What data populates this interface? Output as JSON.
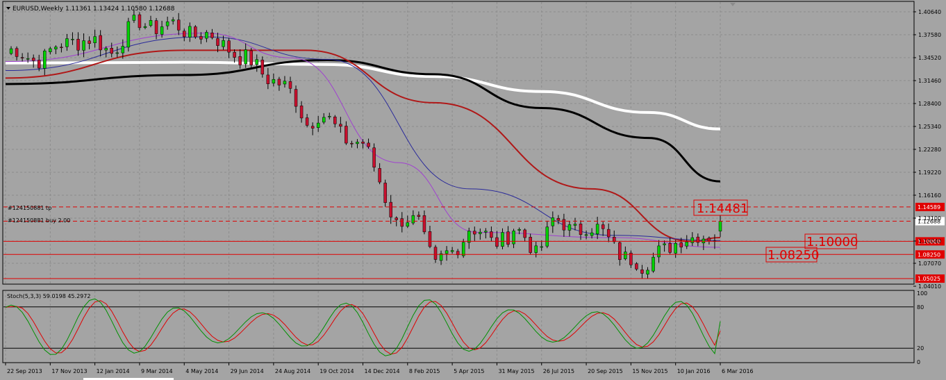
{
  "window": {
    "symbol_line": "EURUSD,Weekly  1.11361 1.13424 1.10580 1.12688"
  },
  "colors": {
    "background": "#a4a4a4",
    "grid": "#8c8c8c",
    "bull": "#00d000",
    "bear": "#c8102e",
    "hline": "#e00000",
    "ma_white": "#ffffff",
    "ma_black": "#000000",
    "ma_red": "#b01818",
    "ma_blue": "#2a2a9a",
    "ma_purple": "#a040d0",
    "stoch_main": "#009000",
    "stoch_signal": "#e00000"
  },
  "price_axis": {
    "ticks": [
      "1.40640",
      "1.37580",
      "1.34520",
      "1.31460",
      "1.28400",
      "1.25340",
      "1.22280",
      "1.19220",
      "1.16160",
      "1.13100",
      "1.10040",
      "1.07070",
      "1.04010"
    ],
    "range": [
      1.0401,
      1.4064
    ],
    "current": "1.12688"
  },
  "date_axis": {
    "labels": [
      "22 Sep 2013",
      "17 Nov 2013",
      "12 Jan 2014",
      "9 Mar 2014",
      "4 May 2014",
      "29 Jun 2014",
      "24 Aug 2014",
      "19 Oct 2014",
      "14 Dec 2014",
      "8 Feb 2015",
      "5 Apr 2015",
      "31 May 2015",
      "26 Jul 2015",
      "20 Sep 2015",
      "15 Nov 2015",
      "10 Jan 2016",
      "6 Mar 2016"
    ]
  },
  "levels": [
    {
      "price": 1.14589,
      "label": "1.14589",
      "style": "dashed"
    },
    {
      "price": 1.12688,
      "label": "1.12688",
      "style": "dashed"
    },
    {
      "price": 1.1,
      "label": "1.10000",
      "style": "solid"
    },
    {
      "price": 1.0825,
      "label": "1.08250",
      "style": "solid"
    },
    {
      "price": 1.05025,
      "label": "1.05025",
      "style": "solid"
    }
  ],
  "order_labels": [
    {
      "text": "#124150881 tp"
    },
    {
      "text": "#124150881 buy 2.00"
    }
  ],
  "callouts": [
    "1.14481",
    "1.10000",
    "1.08250"
  ],
  "stoch": {
    "title": "Stoch(5,3,3) 59.0198 45.2972",
    "ticks": [
      "100",
      "80",
      "20",
      "0"
    ],
    "levels": [
      80,
      20
    ]
  },
  "chart_data": {
    "type": "candlestick",
    "title": "EURUSD,Weekly",
    "ohlc_current": {
      "open": 1.11361,
      "high": 1.13424,
      "low": 1.1058,
      "close": 1.12688
    },
    "anchors": [
      {
        "date": "22 Sep 2013",
        "price": 1.352
      },
      {
        "date": "10 Nov 2013",
        "price": 1.345
      },
      {
        "date": "15 Dec 2013",
        "price": 1.372
      },
      {
        "date": "2 Feb 2014",
        "price": 1.357
      },
      {
        "date": "9 Mar 2014",
        "price": 1.392
      },
      {
        "date": "4 May 2014",
        "price": 1.384
      },
      {
        "date": "29 Jun 2014",
        "price": 1.362
      },
      {
        "date": "13 Jul 2014",
        "price": 1.345
      },
      {
        "date": "24 Aug 2014",
        "price": 1.318
      },
      {
        "date": "21 Sep 2014",
        "price": 1.287
      },
      {
        "date": "5 Oct 2014",
        "price": 1.262
      },
      {
        "date": "19 Oct 2014",
        "price": 1.268
      },
      {
        "date": "16 Nov 2014",
        "price": 1.246
      },
      {
        "date": "14 Dec 2014",
        "price": 1.227
      },
      {
        "date": "4 Jan 2015",
        "price": 1.184
      },
      {
        "date": "25 Jan 2015",
        "price": 1.122
      },
      {
        "date": "22 Feb 2015",
        "price": 1.128
      },
      {
        "date": "15 Mar 2015",
        "price": 1.066
      },
      {
        "date": "5 Apr 2015",
        "price": 1.085
      },
      {
        "date": "26 Apr 2015",
        "price": 1.121
      },
      {
        "date": "24 May 2015",
        "price": 1.098
      },
      {
        "date": "21 Jun 2015",
        "price": 1.116
      },
      {
        "date": "19 Jul 2015",
        "price": 1.086
      },
      {
        "date": "9 Aug 2015",
        "price": 1.128
      },
      {
        "date": "30 Aug 2015",
        "price": 1.114
      },
      {
        "date": "20 Sep 2015",
        "price": 1.124
      },
      {
        "date": "18 Oct 2015",
        "price": 1.101
      },
      {
        "date": "29 Nov 2015",
        "price": 1.062
      },
      {
        "date": "20 Dec 2015",
        "price": 1.092
      },
      {
        "date": "10 Jan 2016",
        "price": 1.092
      },
      {
        "date": "7 Feb 2016",
        "price": 1.115
      },
      {
        "date": "28 Feb 2016",
        "price": 1.1
      },
      {
        "date": "6 Mar 2016",
        "price": 1.12688
      }
    ],
    "moving_averages": [
      {
        "color": "#ffffff",
        "points": [
          [
            1.338,
            0
          ],
          [
            1.339,
            0.25
          ],
          [
            1.336,
            0.45
          ],
          [
            1.32,
            0.6
          ],
          [
            1.3,
            0.75
          ],
          [
            1.272,
            0.9
          ],
          [
            1.25,
            1.0
          ]
        ]
      },
      {
        "color": "#000000",
        "points": [
          [
            1.31,
            0
          ],
          [
            1.322,
            0.25
          ],
          [
            1.342,
            0.45
          ],
          [
            1.323,
            0.6
          ],
          [
            1.278,
            0.75
          ],
          [
            1.238,
            0.9
          ],
          [
            1.18,
            1.0
          ]
        ]
      },
      {
        "color": "#b01818",
        "points": [
          [
            1.318,
            0
          ],
          [
            1.355,
            0.25
          ],
          [
            1.355,
            0.42
          ],
          [
            1.285,
            0.6
          ],
          [
            1.17,
            0.82
          ],
          [
            1.1,
            0.96
          ],
          [
            1.105,
            1.0
          ]
        ]
      },
      {
        "color": "#2a2a9a",
        "points": [
          [
            1.328,
            0
          ],
          [
            1.373,
            0.28
          ],
          [
            1.343,
            0.45
          ],
          [
            1.17,
            0.65
          ],
          [
            1.108,
            0.85
          ],
          [
            1.101,
            1.0
          ]
        ]
      },
      {
        "color": "#a040d0",
        "points": [
          [
            1.34,
            0
          ],
          [
            1.378,
            0.28
          ],
          [
            1.345,
            0.4
          ],
          [
            1.205,
            0.55
          ],
          [
            1.112,
            0.66
          ],
          [
            1.105,
            0.85
          ],
          [
            1.092,
            1.0
          ]
        ]
      }
    ],
    "stoch_last": {
      "main": 59.0198,
      "signal": 45.2972
    },
    "ylim": [
      1.0401,
      1.4064
    ]
  }
}
